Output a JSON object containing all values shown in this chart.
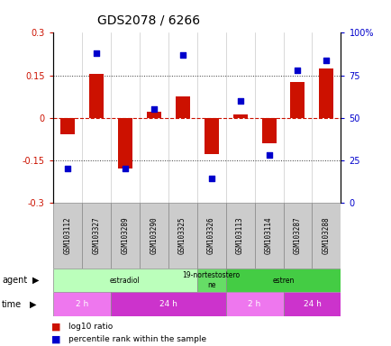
{
  "title": "GDS2078 / 6266",
  "samples": [
    "GSM103112",
    "GSM103327",
    "GSM103289",
    "GSM103290",
    "GSM103325",
    "GSM103326",
    "GSM103113",
    "GSM103114",
    "GSM103287",
    "GSM103288"
  ],
  "log10_ratio": [
    -0.06,
    0.155,
    -0.18,
    0.02,
    0.075,
    -0.13,
    0.01,
    -0.09,
    0.125,
    0.175
  ],
  "percentile_rank": [
    20,
    88,
    20,
    55,
    87,
    14,
    60,
    28,
    78,
    84
  ],
  "ylim_left": [
    -0.3,
    0.3
  ],
  "ylim_right": [
    0,
    100
  ],
  "hline_vals": [
    0.15,
    -0.15
  ],
  "yticks_left": [
    -0.3,
    -0.15,
    0,
    0.15,
    0.3
  ],
  "ytick_labels_left": [
    "-0.3",
    "-0.15",
    "0",
    "0.15",
    "0.3"
  ],
  "yticks_right": [
    0,
    25,
    50,
    75,
    100
  ],
  "ytick_labels_right": [
    "0",
    "25",
    "50",
    "75",
    "100%"
  ],
  "agent_groups": [
    {
      "label": "estradiol",
      "start": 0,
      "end": 5,
      "color": "#bbffbb"
    },
    {
      "label": "19-nortestostero\nne",
      "start": 5,
      "end": 6,
      "color": "#66dd66"
    },
    {
      "label": "estren",
      "start": 6,
      "end": 10,
      "color": "#44cc44"
    }
  ],
  "time_groups": [
    {
      "label": "2 h",
      "start": 0,
      "end": 2,
      "color": "#ee77ee"
    },
    {
      "label": "24 h",
      "start": 2,
      "end": 6,
      "color": "#cc33cc"
    },
    {
      "label": "2 h",
      "start": 6,
      "end": 8,
      "color": "#ee77ee"
    },
    {
      "label": "24 h",
      "start": 8,
      "end": 10,
      "color": "#cc33cc"
    }
  ],
  "bar_color": "#cc1100",
  "scatter_color": "#0000cc",
  "zero_line_color": "#cc1100",
  "dotted_line_color": "#333333",
  "title_fontsize": 10,
  "tick_fontsize": 7,
  "label_fontsize": 7.5,
  "sample_box_color": "#cccccc",
  "sample_box_edge": "#888888"
}
